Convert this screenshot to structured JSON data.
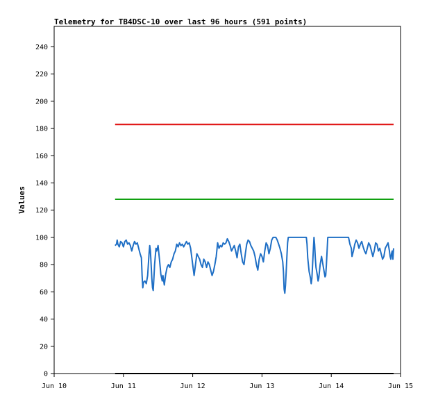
{
  "chart_data": {
    "type": "line",
    "title": "Telemetry for TB4DSC-10 over last 96 hours (591 points)",
    "xlabel": "",
    "ylabel": "Values",
    "x_ticks": [
      "Jun 10",
      "Jun 11",
      "Jun 12",
      "Jun 13",
      "Jun 14",
      "Jun 15"
    ],
    "y_ticks": [
      0,
      20,
      40,
      60,
      80,
      100,
      120,
      140,
      160,
      180,
      200,
      220,
      240
    ],
    "xlim": [
      0,
      5
    ],
    "ylim": [
      0,
      255
    ],
    "grid": false,
    "colors": {
      "series_main": "#1f6fc5",
      "red_line": "#e01010",
      "green_line": "#10a010",
      "baseline": "#000000"
    },
    "series": [
      {
        "color": "#e01010",
        "points": [
          [
            0.88,
            183
          ],
          [
            4.9,
            183
          ]
        ]
      },
      {
        "color": "#10a010",
        "points": [
          [
            0.88,
            128
          ],
          [
            4.9,
            128
          ]
        ]
      },
      {
        "color": "#000000",
        "points": [
          [
            0.88,
            0
          ],
          [
            4.9,
            0
          ]
        ]
      },
      {
        "color": "#1f6fc5",
        "points": [
          [
            0.88,
            94
          ],
          [
            0.9,
            95
          ],
          [
            0.91,
            98
          ],
          [
            0.92,
            95
          ],
          [
            0.94,
            93
          ],
          [
            0.96,
            97
          ],
          [
            0.98,
            96
          ],
          [
            1.0,
            93
          ],
          [
            1.02,
            97
          ],
          [
            1.04,
            98
          ],
          [
            1.06,
            95
          ],
          [
            1.08,
            96
          ],
          [
            1.1,
            94
          ],
          [
            1.12,
            90
          ],
          [
            1.14,
            94
          ],
          [
            1.16,
            97
          ],
          [
            1.18,
            95
          ],
          [
            1.2,
            96
          ],
          [
            1.22,
            92
          ],
          [
            1.24,
            88
          ],
          [
            1.26,
            85
          ],
          [
            1.27,
            72
          ],
          [
            1.28,
            63
          ],
          [
            1.29,
            67
          ],
          [
            1.31,
            68
          ],
          [
            1.33,
            66
          ],
          [
            1.35,
            72
          ],
          [
            1.37,
            88
          ],
          [
            1.38,
            94
          ],
          [
            1.39,
            90
          ],
          [
            1.4,
            80
          ],
          [
            1.41,
            70
          ],
          [
            1.42,
            63
          ],
          [
            1.43,
            61
          ],
          [
            1.44,
            70
          ],
          [
            1.45,
            80
          ],
          [
            1.47,
            92
          ],
          [
            1.48,
            90
          ],
          [
            1.5,
            94
          ],
          [
            1.52,
            84
          ],
          [
            1.54,
            73
          ],
          [
            1.56,
            68
          ],
          [
            1.57,
            72
          ],
          [
            1.59,
            65
          ],
          [
            1.61,
            73
          ],
          [
            1.63,
            78
          ],
          [
            1.65,
            80
          ],
          [
            1.67,
            78
          ],
          [
            1.69,
            82
          ],
          [
            1.71,
            84
          ],
          [
            1.73,
            88
          ],
          [
            1.75,
            90
          ],
          [
            1.77,
            95
          ],
          [
            1.79,
            93
          ],
          [
            1.81,
            96
          ],
          [
            1.83,
            94
          ],
          [
            1.85,
            95
          ],
          [
            1.87,
            93
          ],
          [
            1.89,
            95
          ],
          [
            1.91,
            97
          ],
          [
            1.93,
            95
          ],
          [
            1.95,
            96
          ],
          [
            1.97,
            92
          ],
          [
            1.99,
            84
          ],
          [
            2.01,
            76
          ],
          [
            2.02,
            72
          ],
          [
            2.04,
            80
          ],
          [
            2.06,
            88
          ],
          [
            2.08,
            86
          ],
          [
            2.1,
            84
          ],
          [
            2.12,
            80
          ],
          [
            2.14,
            78
          ],
          [
            2.16,
            84
          ],
          [
            2.18,
            82
          ],
          [
            2.2,
            78
          ],
          [
            2.22,
            82
          ],
          [
            2.24,
            80
          ],
          [
            2.26,
            76
          ],
          [
            2.28,
            72
          ],
          [
            2.3,
            75
          ],
          [
            2.32,
            80
          ],
          [
            2.34,
            86
          ],
          [
            2.36,
            96
          ],
          [
            2.38,
            92
          ],
          [
            2.4,
            94
          ],
          [
            2.42,
            93
          ],
          [
            2.44,
            96
          ],
          [
            2.46,
            95
          ],
          [
            2.48,
            96
          ],
          [
            2.5,
            99
          ],
          [
            2.52,
            97
          ],
          [
            2.54,
            94
          ],
          [
            2.56,
            90
          ],
          [
            2.58,
            92
          ],
          [
            2.6,
            94
          ],
          [
            2.62,
            90
          ],
          [
            2.64,
            85
          ],
          [
            2.66,
            93
          ],
          [
            2.68,
            95
          ],
          [
            2.7,
            88
          ],
          [
            2.72,
            82
          ],
          [
            2.74,
            80
          ],
          [
            2.76,
            88
          ],
          [
            2.78,
            95
          ],
          [
            2.8,
            98
          ],
          [
            2.82,
            97
          ],
          [
            2.84,
            94
          ],
          [
            2.86,
            92
          ],
          [
            2.88,
            90
          ],
          [
            2.9,
            86
          ],
          [
            2.92,
            80
          ],
          [
            2.94,
            76
          ],
          [
            2.96,
            84
          ],
          [
            2.98,
            88
          ],
          [
            3.0,
            86
          ],
          [
            3.02,
            82
          ],
          [
            3.04,
            90
          ],
          [
            3.06,
            96
          ],
          [
            3.08,
            94
          ],
          [
            3.1,
            88
          ],
          [
            3.12,
            92
          ],
          [
            3.14,
            98
          ],
          [
            3.16,
            100
          ],
          [
            3.18,
            100
          ],
          [
            3.2,
            100
          ],
          [
            3.22,
            98
          ],
          [
            3.24,
            95
          ],
          [
            3.26,
            92
          ],
          [
            3.28,
            88
          ],
          [
            3.3,
            82
          ],
          [
            3.31,
            75
          ],
          [
            3.32,
            62
          ],
          [
            3.33,
            59
          ],
          [
            3.34,
            65
          ],
          [
            3.35,
            75
          ],
          [
            3.36,
            86
          ],
          [
            3.37,
            96
          ],
          [
            3.38,
            100
          ],
          [
            3.45,
            100
          ],
          [
            3.52,
            100
          ],
          [
            3.6,
            100
          ],
          [
            3.62,
            100
          ],
          [
            3.64,
            100
          ],
          [
            3.65,
            95
          ],
          [
            3.66,
            85
          ],
          [
            3.67,
            80
          ],
          [
            3.68,
            75
          ],
          [
            3.7,
            70
          ],
          [
            3.71,
            66
          ],
          [
            3.72,
            70
          ],
          [
            3.73,
            80
          ],
          [
            3.74,
            90
          ],
          [
            3.75,
            100
          ],
          [
            3.76,
            95
          ],
          [
            3.77,
            85
          ],
          [
            3.78,
            78
          ],
          [
            3.8,
            72
          ],
          [
            3.81,
            68
          ],
          [
            3.82,
            70
          ],
          [
            3.84,
            80
          ],
          [
            3.86,
            86
          ],
          [
            3.88,
            80
          ],
          [
            3.9,
            74
          ],
          [
            3.91,
            71
          ],
          [
            3.92,
            72
          ],
          [
            3.93,
            80
          ],
          [
            3.94,
            90
          ],
          [
            3.95,
            100
          ],
          [
            4.0,
            100
          ],
          [
            4.1,
            100
          ],
          [
            4.2,
            100
          ],
          [
            4.25,
            100
          ],
          [
            4.27,
            95
          ],
          [
            4.29,
            92
          ],
          [
            4.3,
            86
          ],
          [
            4.32,
            90
          ],
          [
            4.34,
            95
          ],
          [
            4.36,
            98
          ],
          [
            4.38,
            96
          ],
          [
            4.4,
            92
          ],
          [
            4.42,
            95
          ],
          [
            4.44,
            97
          ],
          [
            4.46,
            93
          ],
          [
            4.48,
            90
          ],
          [
            4.5,
            88
          ],
          [
            4.52,
            92
          ],
          [
            4.54,
            96
          ],
          [
            4.56,
            94
          ],
          [
            4.58,
            90
          ],
          [
            4.6,
            86
          ],
          [
            4.62,
            90
          ],
          [
            4.64,
            96
          ],
          [
            4.66,
            95
          ],
          [
            4.68,
            90
          ],
          [
            4.7,
            92
          ],
          [
            4.72,
            88
          ],
          [
            4.74,
            84
          ],
          [
            4.76,
            86
          ],
          [
            4.78,
            92
          ],
          [
            4.8,
            94
          ],
          [
            4.82,
            96
          ],
          [
            4.84,
            90
          ],
          [
            4.85,
            86
          ],
          [
            4.86,
            84
          ],
          [
            4.87,
            88
          ],
          [
            4.88,
            90
          ],
          [
            4.89,
            84
          ],
          [
            4.9,
            92
          ]
        ]
      }
    ]
  }
}
